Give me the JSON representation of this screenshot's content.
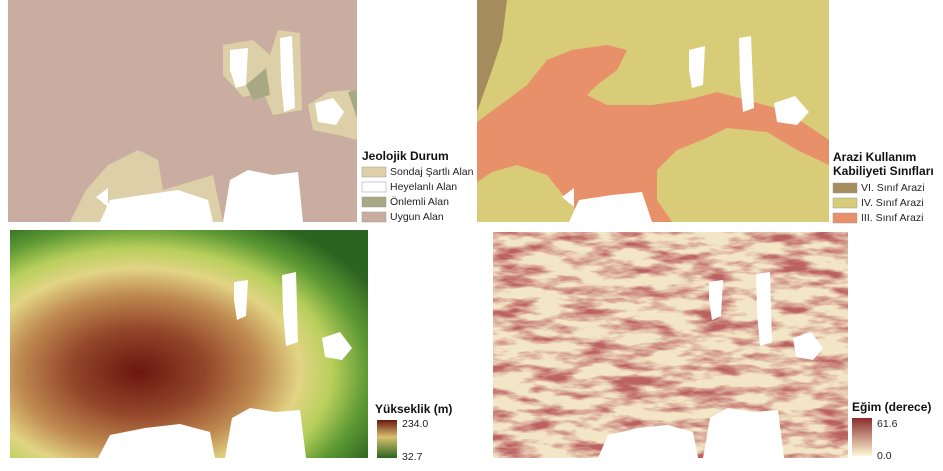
{
  "panels": [
    {
      "legend": {
        "title": "Jeolojik Durum",
        "items": [
          "Sondaj Şartlı Alan",
          "Heyelanlı Alan",
          "Önlemli Alan",
          "Uygun Alan"
        ]
      }
    },
    {
      "legend": {
        "title_lines": [
          "Arazi Kullanım",
          "Kabiliyeti Sınıfları"
        ],
        "items": [
          "VI. Sınıf Arazi",
          "IV. Sınıf Arazi",
          "III. Sınıf Arazi"
        ]
      }
    },
    {
      "legend": {
        "title": "Yükseklik (m)",
        "max": "234.0",
        "min": "32.7"
      }
    },
    {
      "legend": {
        "title": "Eğim (derece)",
        "max": "61.6",
        "min": "0.0"
      }
    }
  ]
}
